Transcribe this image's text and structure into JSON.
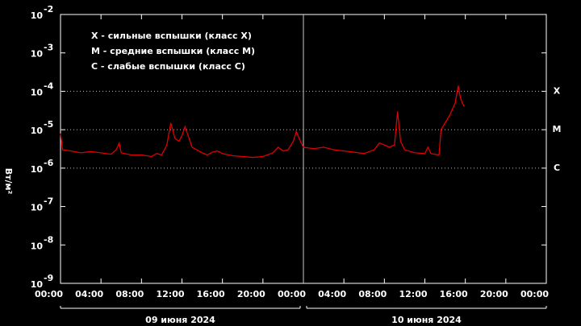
{
  "chart_data": {
    "type": "line",
    "log_scale": true,
    "y_label": "Вт/м²",
    "legend_lines": [
      "X - сильные вспышки (класс X)",
      "M - средние вспышки (класс M)",
      "C - слабые вспышки (класс C)"
    ],
    "levels": [
      {
        "label": "X",
        "value": 0.0001
      },
      {
        "label": "M",
        "value": 1e-05
      },
      {
        "label": "C",
        "value": 1e-06
      }
    ],
    "date_labels": [
      "09 июня 2024",
      "10 июня 2024"
    ],
    "xlim": [
      0,
      48
    ],
    "xticks": [
      {
        "value": 0,
        "label": "00:00"
      },
      {
        "value": 4,
        "label": "04:00"
      },
      {
        "value": 8,
        "label": "08:00"
      },
      {
        "value": 12,
        "label": "12:00"
      },
      {
        "value": 16,
        "label": "16:00"
      },
      {
        "value": 20,
        "label": "20:00"
      },
      {
        "value": 24,
        "label": "00:00"
      },
      {
        "value": 28,
        "label": "04:00"
      },
      {
        "value": 32,
        "label": "08:00"
      },
      {
        "value": 36,
        "label": "12:00"
      },
      {
        "value": 40,
        "label": "16:00"
      },
      {
        "value": 44,
        "label": "20:00"
      },
      {
        "value": 48,
        "label": "00:00"
      }
    ],
    "ylim": [
      1e-09,
      0.01
    ],
    "yticks": [
      {
        "value": 0.01,
        "label": "10",
        "exponent": "-2"
      },
      {
        "value": 0.001,
        "label": "10",
        "exponent": "-3"
      },
      {
        "value": 0.0001,
        "label": "10",
        "exponent": "-4"
      },
      {
        "value": 1e-05,
        "label": "10",
        "exponent": "-5"
      },
      {
        "value": 1e-06,
        "label": "10",
        "exponent": "-6"
      },
      {
        "value": 1e-07,
        "label": "10",
        "exponent": "-7"
      },
      {
        "value": 1e-08,
        "label": "10",
        "exponent": "-8"
      },
      {
        "value": 1e-09,
        "label": "10",
        "exponent": "-9"
      }
    ],
    "series": [
      {
        "color": "#e00000",
        "x": [
          0,
          0.2,
          1,
          2,
          3,
          4,
          5,
          5.5,
          5.8,
          6,
          7,
          8,
          9,
          9.5,
          10,
          10.5,
          10.9,
          11.3,
          11.7,
          12,
          12.3,
          12.7,
          13,
          14,
          14.5,
          15,
          15.5,
          16,
          17,
          18,
          19,
          20,
          21,
          21.5,
          22,
          22.5,
          23,
          23.3,
          23.7,
          24,
          25,
          26,
          27,
          28,
          29,
          30,
          31,
          31.5,
          32,
          32.5,
          33,
          33.3,
          33.6,
          34,
          35,
          36,
          36.3,
          36.6,
          37,
          37.4,
          37.6,
          38,
          38.5,
          39,
          39.3,
          39.5,
          39.7,
          39.9
        ],
        "values": [
          8e-06,
          3e-06,
          2.8e-06,
          2.5e-06,
          2.7e-06,
          2.5e-06,
          2.3e-06,
          3e-06,
          4.5e-06,
          2.5e-06,
          2.2e-06,
          2.2e-06,
          2e-06,
          2.4e-06,
          2.2e-06,
          4e-06,
          1.5e-05,
          6e-06,
          5e-06,
          7e-06,
          1.2e-05,
          6e-06,
          3.5e-06,
          2.5e-06,
          2.2e-06,
          2.6e-06,
          2.8e-06,
          2.4e-06,
          2.1e-06,
          2e-06,
          1.9e-06,
          2e-06,
          2.5e-06,
          3.5e-06,
          2.8e-06,
          3e-06,
          5e-06,
          9e-06,
          5e-06,
          3.5e-06,
          3.2e-06,
          3.5e-06,
          3e-06,
          2.8e-06,
          2.6e-06,
          2.4e-06,
          3e-06,
          4.5e-06,
          4e-06,
          3.5e-06,
          4e-06,
          3e-05,
          5e-06,
          3e-06,
          2.5e-06,
          2.4e-06,
          3.5e-06,
          2.4e-06,
          2.3e-06,
          2.2e-06,
          1e-05,
          1.5e-05,
          2.5e-05,
          5e-05,
          0.00014,
          7e-05,
          5e-05,
          4e-05
        ]
      }
    ]
  }
}
